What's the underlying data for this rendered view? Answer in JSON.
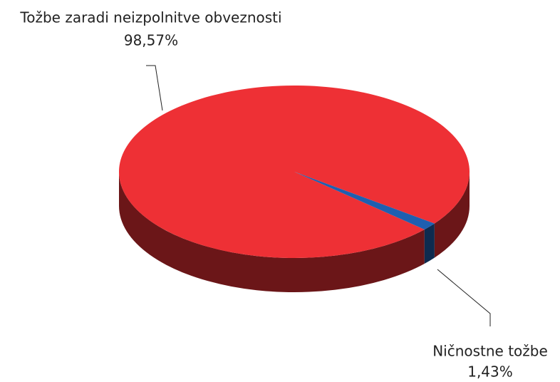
{
  "chart_data": {
    "type": "pie",
    "categories": [
      "Tožbe zaradi neizpolnitve obveznosti",
      "Ničnostne tožbe"
    ],
    "values": [
      98.57,
      1.43
    ],
    "value_labels": [
      "98,57%",
      "1,43%"
    ],
    "colors": [
      "#ee3035",
      "#1f5fb0"
    ]
  }
}
